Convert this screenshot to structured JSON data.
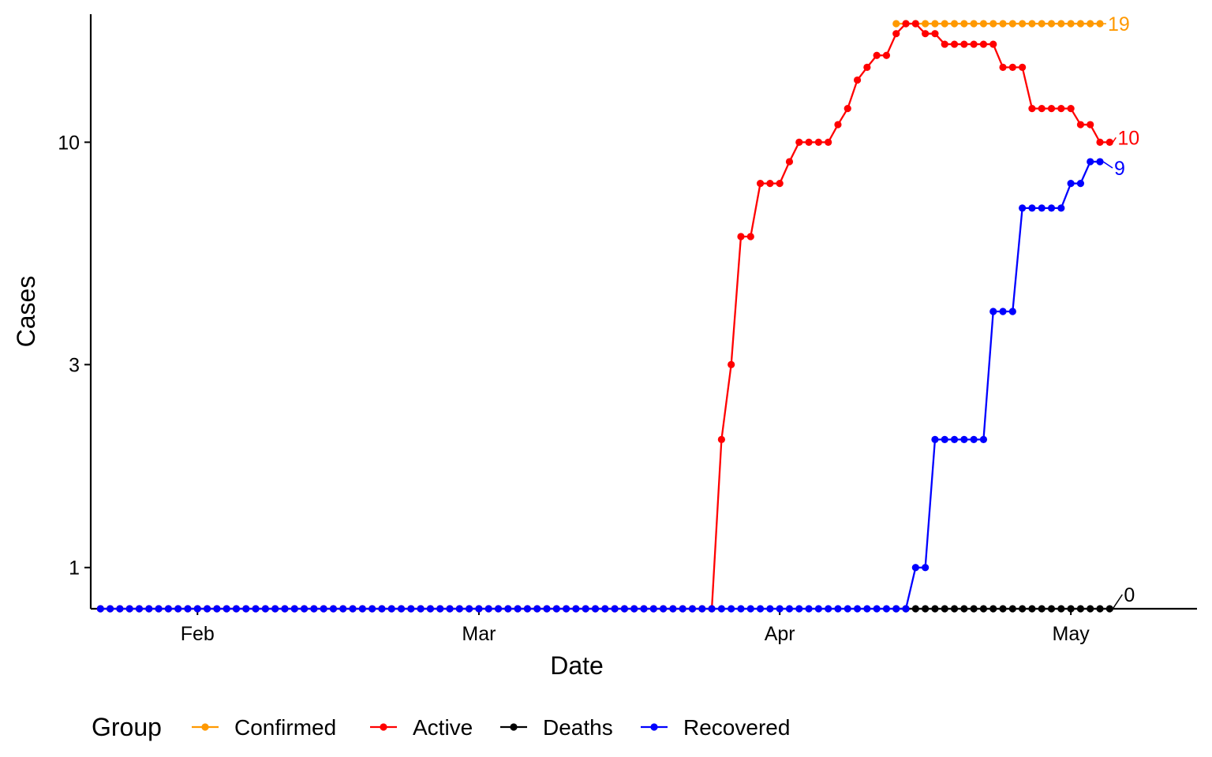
{
  "chart_data": {
    "type": "line",
    "xlabel": "Date",
    "ylabel": "Cases",
    "y_scale": "log",
    "xlim": [
      "2020-01-21",
      "2020-05-14"
    ],
    "ylim": [
      0.8,
      20
    ],
    "x_ticks": [
      {
        "date": "2020-02-01",
        "label": "Feb"
      },
      {
        "date": "2020-03-01",
        "label": "Mar"
      },
      {
        "date": "2020-04-01",
        "label": "Apr"
      },
      {
        "date": "2020-05-01",
        "label": "May"
      }
    ],
    "y_ticks": [
      {
        "value": 1,
        "label": "1"
      },
      {
        "value": 3,
        "label": "3"
      },
      {
        "value": 10,
        "label": "10"
      }
    ],
    "legend": {
      "title": "Group",
      "position": "bottom",
      "entries": [
        "Confirmed",
        "Active",
        "Deaths",
        "Recovered"
      ]
    },
    "grid": false,
    "start_date": "2020-01-22",
    "end_date": "2020-05-04",
    "series": [
      {
        "name": "Confirmed",
        "color": "#FF9900",
        "end_label": "19",
        "points": [
          [
            "2020-04-13",
            19
          ],
          [
            "2020-05-04",
            19
          ]
        ]
      },
      {
        "name": "Active",
        "color": "#FF0000",
        "end_label": "10",
        "points": [
          [
            "2020-01-22",
            0.8
          ],
          [
            "2020-03-25",
            0.8
          ],
          [
            "2020-03-26",
            2
          ],
          [
            "2020-03-27",
            3
          ],
          [
            "2020-03-28",
            6
          ],
          [
            "2020-03-29",
            6
          ],
          [
            "2020-03-30",
            8
          ],
          [
            "2020-03-31",
            8
          ],
          [
            "2020-04-01",
            8
          ],
          [
            "2020-04-02",
            9
          ],
          [
            "2020-04-03",
            10
          ],
          [
            "2020-04-04",
            10
          ],
          [
            "2020-04-05",
            10
          ],
          [
            "2020-04-06",
            10
          ],
          [
            "2020-04-07",
            11
          ],
          [
            "2020-04-08",
            12
          ],
          [
            "2020-04-09",
            14
          ],
          [
            "2020-04-10",
            15
          ],
          [
            "2020-04-11",
            16
          ],
          [
            "2020-04-12",
            16
          ],
          [
            "2020-04-13",
            18
          ],
          [
            "2020-04-14",
            19
          ],
          [
            "2020-04-15",
            19
          ],
          [
            "2020-04-16",
            18
          ],
          [
            "2020-04-17",
            18
          ],
          [
            "2020-04-18",
            17
          ],
          [
            "2020-04-19",
            17
          ],
          [
            "2020-04-20",
            17
          ],
          [
            "2020-04-21",
            17
          ],
          [
            "2020-04-22",
            17
          ],
          [
            "2020-04-23",
            17
          ],
          [
            "2020-04-24",
            15
          ],
          [
            "2020-04-25",
            15
          ],
          [
            "2020-04-26",
            15
          ],
          [
            "2020-04-27",
            12
          ],
          [
            "2020-04-28",
            12
          ],
          [
            "2020-04-29",
            12
          ],
          [
            "2020-04-30",
            12
          ],
          [
            "2020-05-01",
            12
          ],
          [
            "2020-05-02",
            11
          ],
          [
            "2020-05-03",
            11
          ],
          [
            "2020-05-04",
            10
          ],
          [
            "2020-05-05",
            10
          ]
        ]
      },
      {
        "name": "Deaths",
        "color": "#000000",
        "end_label": "0",
        "points": [
          [
            "2020-04-13",
            0.8
          ],
          [
            "2020-05-05",
            0.8
          ]
        ]
      },
      {
        "name": "Recovered",
        "color": "#0000FF",
        "end_label": "9",
        "points": [
          [
            "2020-01-22",
            0.8
          ],
          [
            "2020-04-14",
            0.8
          ],
          [
            "2020-04-15",
            1
          ],
          [
            "2020-04-16",
            1
          ],
          [
            "2020-04-17",
            2
          ],
          [
            "2020-04-18",
            2
          ],
          [
            "2020-04-19",
            2
          ],
          [
            "2020-04-20",
            2
          ],
          [
            "2020-04-21",
            2
          ],
          [
            "2020-04-22",
            2
          ],
          [
            "2020-04-23",
            4
          ],
          [
            "2020-04-24",
            4
          ],
          [
            "2020-04-25",
            4
          ],
          [
            "2020-04-26",
            7
          ],
          [
            "2020-04-27",
            7
          ],
          [
            "2020-04-28",
            7
          ],
          [
            "2020-04-29",
            7
          ],
          [
            "2020-04-30",
            7
          ],
          [
            "2020-05-01",
            8
          ],
          [
            "2020-05-02",
            8
          ],
          [
            "2020-05-03",
            9
          ],
          [
            "2020-05-04",
            9
          ]
        ]
      }
    ]
  }
}
